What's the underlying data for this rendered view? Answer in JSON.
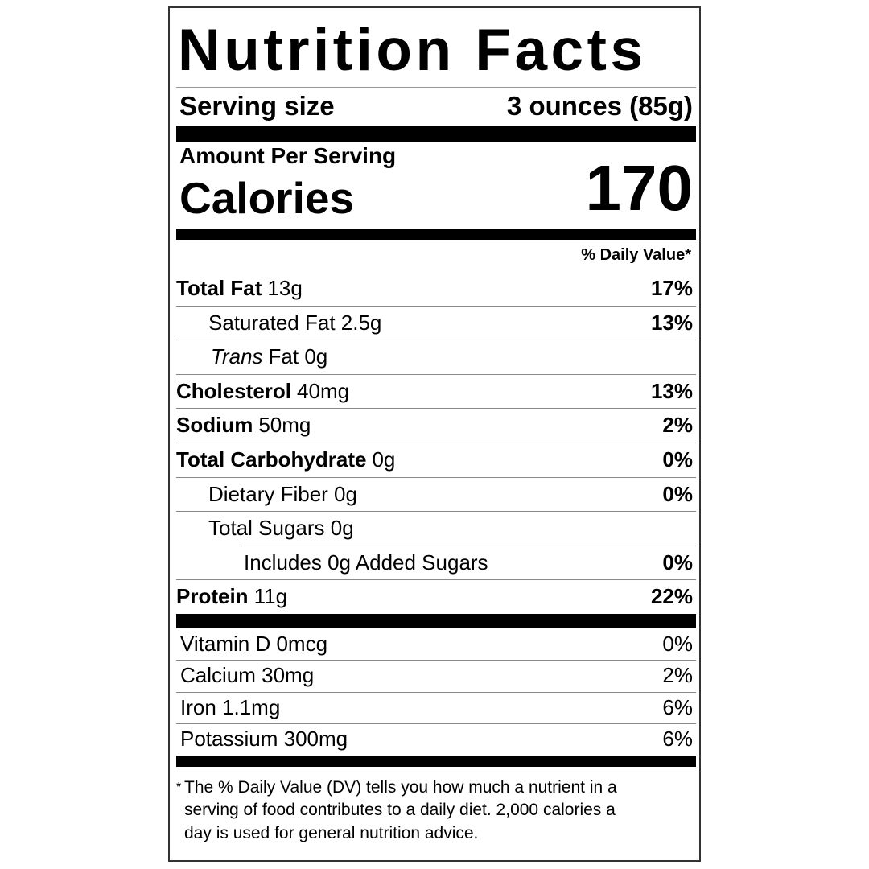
{
  "title": "Nutrition Facts",
  "serving": {
    "label": "Serving size",
    "value": "3 ounces (85g)"
  },
  "amount_per_serving": "Amount Per Serving",
  "calories": {
    "label": "Calories",
    "value": "170"
  },
  "dv_header": "% Daily Value*",
  "nutrients": [
    {
      "name": "Total Fat",
      "amount": "13g",
      "dv": "17%",
      "sub": [
        {
          "name": "Saturated Fat 2.5g",
          "dv": "13%"
        },
        {
          "prefix": "Trans",
          "name": "Fat 0g"
        }
      ]
    },
    {
      "name": "Cholesterol",
      "amount": "40mg",
      "dv": "13%"
    },
    {
      "name": "Sodium",
      "amount": "50mg",
      "dv": "2%"
    },
    {
      "name": "Total Carbohydrate",
      "amount": "0g",
      "dv": "0%",
      "sub": [
        {
          "name": "Dietary Fiber 0g",
          "dv": "0%"
        },
        {
          "name": "Total Sugars 0g",
          "sub": [
            {
              "name": "Includes 0g Added Sugars",
              "dv": "0%"
            }
          ]
        }
      ]
    },
    {
      "name": "Protein",
      "amount": "11g",
      "dv": "22%"
    }
  ],
  "vitamins": [
    {
      "name": "Vitamin D 0mcg",
      "dv": "0%"
    },
    {
      "name": "Calcium 30mg",
      "dv": "2%"
    },
    {
      "name": "Iron 1.1mg",
      "dv": "6%"
    },
    {
      "name": "Potassium 300mg",
      "dv": "6%"
    }
  ],
  "footnote": {
    "mark": "*",
    "lines": [
      "The % Daily Value (DV) tells you how much a nutrient in a",
      "serving of food contributes to a daily diet. 2,000 calories a",
      "day is used for general nutrition advice."
    ]
  }
}
